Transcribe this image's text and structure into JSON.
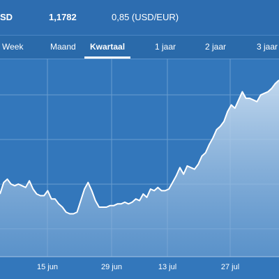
{
  "header": {
    "symbol": "SD",
    "price": "1,1782",
    "inverse": "0,85 (USD/EUR)"
  },
  "tabs": [
    {
      "label": "Week",
      "active": false
    },
    {
      "label": "Maand",
      "active": false
    },
    {
      "label": "Kwartaal",
      "active": true
    },
    {
      "label": "1 jaar",
      "active": false
    },
    {
      "label": "2 jaar",
      "active": false
    },
    {
      "label": "3 jaar",
      "active": false
    }
  ],
  "colors": {
    "background": "#3377bb",
    "line": "#ffffff",
    "grid": "#6a9ccf"
  },
  "chart_data": {
    "type": "area",
    "title": "",
    "xlabel": "",
    "ylabel": "",
    "x_ticks": [
      "15 jun",
      "29 jun",
      "13 jul",
      "27 jul"
    ],
    "grid": true,
    "y_axis_labels_visible": false,
    "series": [
      {
        "values": [
          0.38,
          0.45,
          0.47,
          0.44,
          0.43,
          0.44,
          0.43,
          0.42,
          0.46,
          0.41,
          0.38,
          0.37,
          0.37,
          0.4,
          0.35,
          0.35,
          0.32,
          0.3,
          0.27,
          0.26,
          0.26,
          0.27,
          0.34,
          0.41,
          0.45,
          0.4,
          0.34,
          0.3,
          0.3,
          0.3,
          0.31,
          0.31,
          0.32,
          0.32,
          0.33,
          0.32,
          0.33,
          0.35,
          0.34,
          0.38,
          0.36,
          0.41,
          0.4,
          0.42,
          0.4,
          0.4,
          0.41,
          0.45,
          0.49,
          0.54,
          0.5,
          0.55,
          0.54,
          0.53,
          0.56,
          0.61,
          0.63,
          0.68,
          0.72,
          0.77,
          0.79,
          0.82,
          0.88,
          0.92,
          0.9,
          0.95,
          1.0,
          0.96,
          0.96,
          0.95,
          0.94,
          0.98,
          0.99,
          1.0,
          1.02,
          1.05,
          1.07
        ]
      }
    ]
  }
}
